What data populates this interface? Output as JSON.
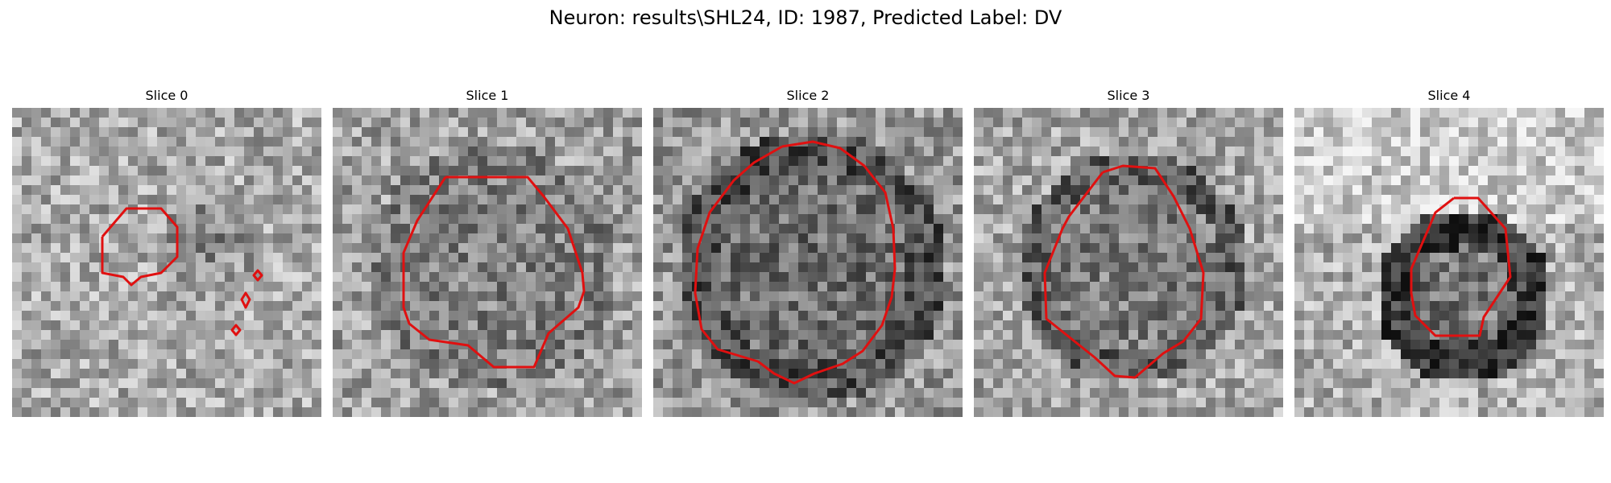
{
  "figure": {
    "title": "Neuron: results\\SHL24, ID: 1987, Predicted Label: DV"
  },
  "panels": [
    {
      "title": "Slice 0"
    },
    {
      "title": "Slice 1"
    },
    {
      "title": "Slice 2"
    },
    {
      "title": "Slice 3"
    },
    {
      "title": "Slice 4"
    }
  ],
  "colors": {
    "contour": "#e01010",
    "background": "#ffffff",
    "colormap": "gray"
  }
}
